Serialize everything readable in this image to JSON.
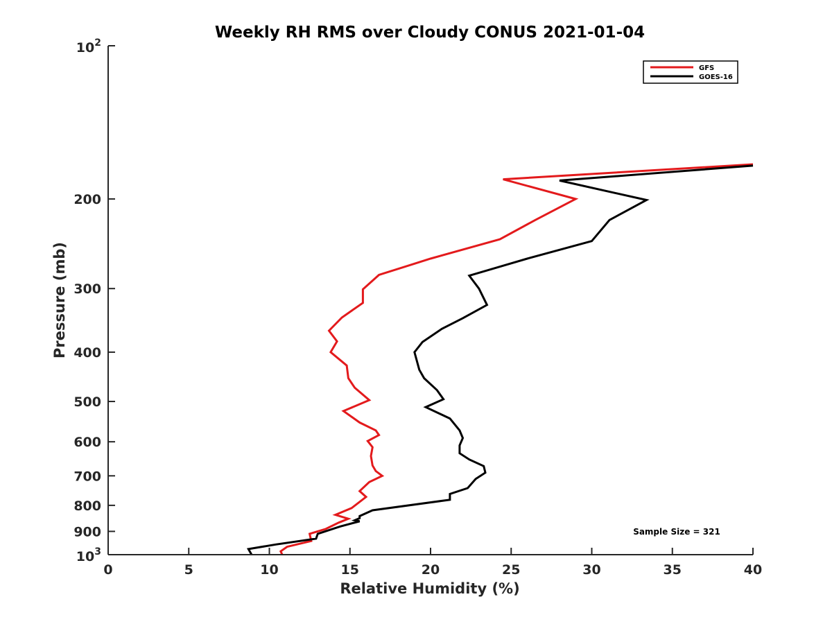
{
  "chart_data": {
    "type": "line",
    "title": "Weekly RH RMS over Cloudy CONUS 2021-01-04",
    "xlabel": "Relative Humidity (%)",
    "ylabel": "Pressure (mb)",
    "xlim": [
      0,
      40
    ],
    "ylim": [
      100,
      1000
    ],
    "y_scale": "log",
    "y_reversed": true,
    "x_ticks": [
      0,
      5,
      10,
      15,
      20,
      25,
      30,
      35,
      40
    ],
    "x_tick_labels": [
      "0",
      "5",
      "10",
      "15",
      "20",
      "25",
      "30",
      "35",
      "40"
    ],
    "y_ticks": [
      200,
      300,
      400,
      500,
      600,
      700,
      800,
      900
    ],
    "y_tick_labels": [
      "200",
      "300",
      "400",
      "500",
      "600",
      "700",
      "800",
      "900"
    ],
    "y_decade_ticks": [
      {
        "value": 100,
        "base": "10",
        "exp": "2"
      },
      {
        "value": 1000,
        "base": "10",
        "exp": "3"
      }
    ],
    "legend": {
      "position": "top-right"
    },
    "annotation": "Sample Size = 321",
    "grid": false,
    "series": [
      {
        "name": "GFS",
        "color": "#e31a1c",
        "points": [
          [
            40.0,
            171
          ],
          [
            24.5,
            183
          ],
          [
            29.0,
            200
          ],
          [
            26.5,
            220
          ],
          [
            24.3,
            240
          ],
          [
            20.0,
            262
          ],
          [
            16.8,
            282
          ],
          [
            15.8,
            301
          ],
          [
            15.8,
            320
          ],
          [
            14.5,
            342
          ],
          [
            13.7,
            363
          ],
          [
            14.2,
            381
          ],
          [
            13.8,
            400
          ],
          [
            14.8,
            425
          ],
          [
            14.9,
            450
          ],
          [
            15.3,
            470
          ],
          [
            16.2,
            497
          ],
          [
            14.6,
            522
          ],
          [
            15.6,
            550
          ],
          [
            16.6,
            570
          ],
          [
            16.8,
            582
          ],
          [
            16.1,
            598
          ],
          [
            16.4,
            615
          ],
          [
            16.3,
            640
          ],
          [
            16.4,
            668
          ],
          [
            16.6,
            685
          ],
          [
            17.0,
            700
          ],
          [
            16.2,
            720
          ],
          [
            15.6,
            750
          ],
          [
            16.0,
            770
          ],
          [
            15.1,
            810
          ],
          [
            14.1,
            835
          ],
          [
            14.9,
            850
          ],
          [
            14.3,
            865
          ],
          [
            13.5,
            890
          ],
          [
            12.5,
            910
          ],
          [
            12.6,
            940
          ],
          [
            11.1,
            965
          ],
          [
            10.7,
            985
          ],
          [
            10.8,
            1000
          ]
        ]
      },
      {
        "name": "GOES-16",
        "color": "#000000",
        "points": [
          [
            40.0,
            172
          ],
          [
            28.0,
            184
          ],
          [
            33.4,
            201
          ],
          [
            31.1,
            220
          ],
          [
            30.0,
            242
          ],
          [
            26.0,
            262
          ],
          [
            22.4,
            283
          ],
          [
            23.0,
            300
          ],
          [
            23.5,
            323
          ],
          [
            22.0,
            343
          ],
          [
            20.7,
            360
          ],
          [
            19.5,
            382
          ],
          [
            19.0,
            400
          ],
          [
            19.3,
            433
          ],
          [
            19.6,
            450
          ],
          [
            20.4,
            475
          ],
          [
            20.8,
            495
          ],
          [
            19.7,
            513
          ],
          [
            21.2,
            540
          ],
          [
            21.8,
            570
          ],
          [
            22.0,
            590
          ],
          [
            21.8,
            610
          ],
          [
            21.8,
            632
          ],
          [
            22.4,
            650
          ],
          [
            23.3,
            670
          ],
          [
            23.4,
            690
          ],
          [
            22.8,
            710
          ],
          [
            22.3,
            740
          ],
          [
            21.2,
            760
          ],
          [
            21.2,
            780
          ],
          [
            16.4,
            818
          ],
          [
            15.6,
            840
          ],
          [
            15.6,
            848
          ],
          [
            15.3,
            856
          ],
          [
            15.6,
            860
          ],
          [
            14.4,
            880
          ],
          [
            13.0,
            910
          ],
          [
            12.9,
            930
          ],
          [
            10.4,
            955
          ],
          [
            8.7,
            975
          ],
          [
            8.9,
            1000
          ]
        ]
      }
    ]
  }
}
